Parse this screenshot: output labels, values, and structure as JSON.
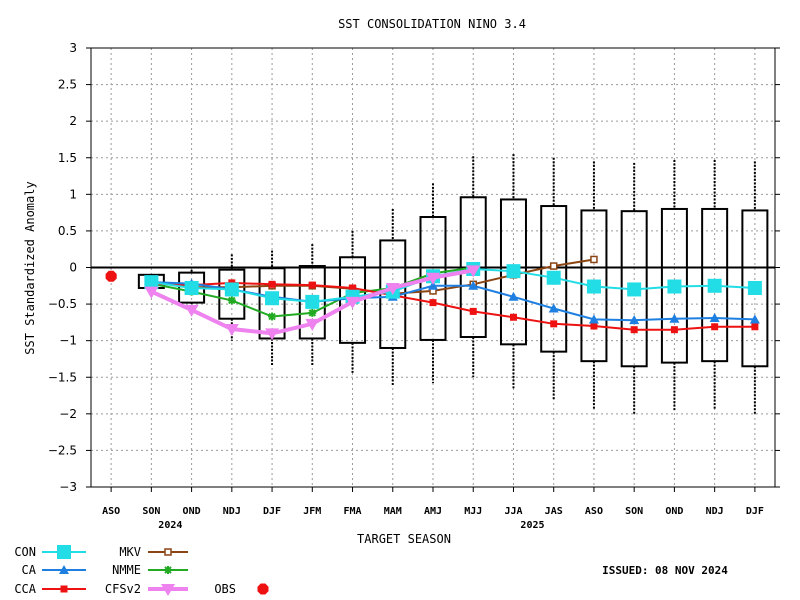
{
  "chart_data": {
    "type": "box+line",
    "title": "SST CONSOLIDATION NINO 3.4",
    "ylabel": "SST Standardized Anomaly",
    "xlabel": "TARGET SEASON",
    "ylim": [
      -3,
      3
    ],
    "yticks": [
      3,
      2.5,
      2,
      1.5,
      1,
      0.5,
      0,
      -0.5,
      -1,
      -1.5,
      -2,
      -2.5,
      -3
    ],
    "ytick_labels": [
      "3",
      "2.5",
      "2",
      "1.5",
      "1",
      "0.5",
      "0",
      "−0.5",
      "−1",
      "−1.5",
      "−2",
      "−2.5",
      "−3"
    ],
    "grid": true,
    "categories": [
      "ASO",
      "SON",
      "OND",
      "NDJ",
      "DJF",
      "JFM",
      "FMA",
      "MAM",
      "AMJ",
      "MJJ",
      "JJA",
      "JAS",
      "ASO",
      "SON",
      "OND",
      "NDJ",
      "DJF"
    ],
    "year_labels": [
      {
        "category_index": 1,
        "text": "2024"
      },
      {
        "category_index": 10,
        "text": "2025"
      }
    ],
    "issued": "ISSUED: 08 NOV 2024",
    "boxes": [
      {
        "index": 1,
        "whisker_low": -0.28,
        "q1": -0.28,
        "q3": -0.1,
        "whisker_high": -0.1
      },
      {
        "index": 2,
        "whisker_low": -0.5,
        "q1": -0.48,
        "q3": -0.07,
        "whisker_high": -0.03
      },
      {
        "index": 3,
        "whisker_low": -1.0,
        "q1": -0.7,
        "q3": -0.03,
        "whisker_high": 0.18
      },
      {
        "index": 4,
        "whisker_low": -1.35,
        "q1": -0.97,
        "q3": -0.01,
        "whisker_high": 0.23
      },
      {
        "index": 5,
        "whisker_low": -1.35,
        "q1": -0.97,
        "q3": 0.02,
        "whisker_high": 0.32
      },
      {
        "index": 6,
        "whisker_low": -1.45,
        "q1": -1.03,
        "q3": 0.14,
        "whisker_high": 0.5
      },
      {
        "index": 7,
        "whisker_low": -1.62,
        "q1": -1.1,
        "q3": 0.37,
        "whisker_high": 0.8
      },
      {
        "index": 8,
        "whisker_low": -1.58,
        "q1": -0.99,
        "q3": 0.69,
        "whisker_high": 1.15
      },
      {
        "index": 9,
        "whisker_low": -1.5,
        "q1": -0.95,
        "q3": 0.96,
        "whisker_high": 1.52
      },
      {
        "index": 10,
        "whisker_low": -1.65,
        "q1": -1.05,
        "q3": 0.93,
        "whisker_high": 1.55
      },
      {
        "index": 11,
        "whisker_low": -1.8,
        "q1": -1.15,
        "q3": 0.84,
        "whisker_high": 1.5
      },
      {
        "index": 12,
        "whisker_low": -1.93,
        "q1": -1.28,
        "q3": 0.78,
        "whisker_high": 1.45
      },
      {
        "index": 13,
        "whisker_low": -2.0,
        "q1": -1.35,
        "q3": 0.77,
        "whisker_high": 1.43
      },
      {
        "index": 14,
        "whisker_low": -1.95,
        "q1": -1.3,
        "q3": 0.8,
        "whisker_high": 1.47
      },
      {
        "index": 15,
        "whisker_low": -1.93,
        "q1": -1.28,
        "q3": 0.8,
        "whisker_high": 1.47
      },
      {
        "index": 16,
        "whisker_low": -2.0,
        "q1": -1.35,
        "q3": 0.78,
        "whisker_high": 1.45
      }
    ],
    "series": [
      {
        "name": "CON",
        "color": "#22dde6",
        "marker": "square-large",
        "start_index": 1,
        "values": [
          -0.2,
          -0.28,
          -0.3,
          -0.42,
          -0.47,
          -0.4,
          -0.33,
          -0.12,
          -0.02,
          -0.05,
          -0.14,
          -0.26,
          -0.3,
          -0.26,
          -0.25,
          -0.28
        ]
      },
      {
        "name": "CA",
        "color": "#1e7fe0",
        "marker": "triangle",
        "start_index": 1,
        "values": [
          -0.2,
          -0.22,
          -0.3,
          -0.4,
          -0.47,
          -0.42,
          -0.4,
          -0.25,
          -0.25,
          -0.4,
          -0.56,
          -0.71,
          -0.72,
          -0.7,
          -0.69,
          -0.71
        ]
      },
      {
        "name": "CCA",
        "color": "#ee1111",
        "marker": "square",
        "start_index": 1,
        "values": [
          -0.22,
          -0.24,
          -0.21,
          -0.23,
          -0.24,
          -0.28,
          -0.38,
          -0.48,
          -0.6,
          -0.68,
          -0.77,
          -0.8,
          -0.85,
          -0.85,
          -0.81,
          -0.81
        ]
      },
      {
        "name": "MKV",
        "color": "#8b4513",
        "marker": "open-square",
        "start_index": 1,
        "values": [
          -0.2,
          -0.27,
          -0.27,
          -0.25,
          -0.25,
          -0.29,
          -0.36,
          -0.32,
          -0.23,
          -0.1,
          0.02,
          0.11
        ]
      },
      {
        "name": "NMME",
        "color": "#22aa22",
        "marker": "star",
        "start_index": 1,
        "values": [
          -0.22,
          -0.33,
          -0.45,
          -0.67,
          -0.62,
          -0.35,
          -0.28,
          -0.08,
          0.0
        ]
      },
      {
        "name": "CFSv2",
        "color": "#ee82ee",
        "marker": "triangle-down",
        "start_index": 1,
        "values": [
          -0.33,
          -0.58,
          -0.84,
          -0.9,
          -0.77,
          -0.47,
          -0.28,
          -0.14,
          -0.04
        ]
      }
    ],
    "obs": {
      "name": "OBS",
      "color": "#ee1111",
      "index": 0,
      "value": -0.12
    }
  },
  "legend": {
    "items": [
      {
        "name": "CON",
        "color": "#22dde6",
        "marker": "square-large"
      },
      {
        "name": "CA",
        "color": "#1e7fe0",
        "marker": "triangle"
      },
      {
        "name": "CCA",
        "color": "#ee1111",
        "marker": "square"
      },
      {
        "name": "MKV",
        "color": "#8b4513",
        "marker": "open-square"
      },
      {
        "name": "NMME",
        "color": "#22aa22",
        "marker": "star"
      },
      {
        "name": "CFSv2",
        "color": "#ee82ee",
        "marker": "triangle-down"
      },
      {
        "name": "OBS",
        "color": "#ee1111",
        "marker": "octagon"
      }
    ]
  }
}
